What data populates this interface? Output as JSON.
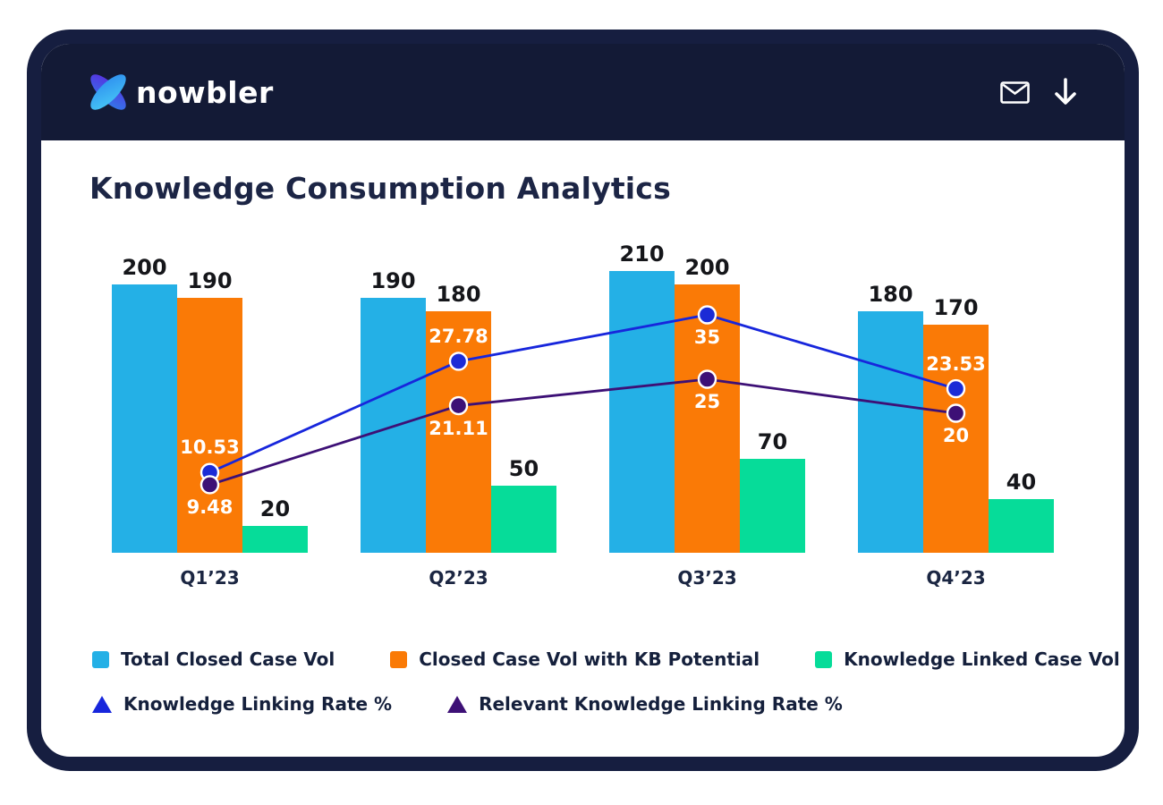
{
  "header": {
    "logo_text": "nowbler",
    "icons": [
      {
        "name": "mail-icon"
      },
      {
        "name": "download-icon"
      }
    ]
  },
  "main": {
    "title": "Knowledge Consumption Analytics"
  },
  "chart_data": {
    "type": "bar",
    "subtype": "grouped-bars-with-line-overlay",
    "title": "Knowledge Consumption Analytics",
    "xlabel": "",
    "ylabel": "",
    "categories": [
      "Q1’23",
      "Q2’23",
      "Q3’23",
      "Q4’23"
    ],
    "series": [
      {
        "name": "Total Closed Case Vol",
        "kind": "bar",
        "color": "#24b0e6",
        "values": [
          200,
          190,
          210,
          180
        ]
      },
      {
        "name": "Closed Case Vol with KB Potential",
        "kind": "bar",
        "color": "#fa7a06",
        "values": [
          190,
          180,
          200,
          170
        ]
      },
      {
        "name": "Knowledge Linked Case Vol",
        "kind": "bar",
        "color": "#06dc99",
        "values": [
          20,
          50,
          70,
          40
        ]
      },
      {
        "name": "Knowledge Linking Rate %",
        "kind": "line",
        "color": "#1726dc",
        "dot_color": "#1b2bd6",
        "values": [
          10.53,
          27.78,
          35,
          23.53
        ],
        "label_positions": [
          "above",
          "above",
          "below",
          "above"
        ]
      },
      {
        "name": "Relevant Knowledge Linking Rate %",
        "kind": "line",
        "color": "#3d1076",
        "dot_color": "#3d1076",
        "values": [
          9.48,
          21.11,
          25,
          20
        ],
        "label_positions": [
          "below",
          "below",
          "below",
          "below"
        ]
      }
    ],
    "value_labels_on_bars": true,
    "value_labels_on_lines": true,
    "axes": {
      "y_axis_visible": false,
      "x_axis_visible": false,
      "gridlines": false
    },
    "legend_position": "bottom",
    "bar_axis_range": [
      0,
      210
    ],
    "line_axis_range_pct": [
      0,
      40
    ]
  },
  "colors": {
    "frame": "#161e40",
    "header_bg": "#131a36",
    "page_bg": "#ffffff",
    "title_text": "#1c2545",
    "bar_value_text": "#15161a",
    "axis_label_text": "#1b2642",
    "legend_text": "#15203c",
    "line_point_label_text": "#ffffff",
    "icon_color": "#ffffff"
  }
}
